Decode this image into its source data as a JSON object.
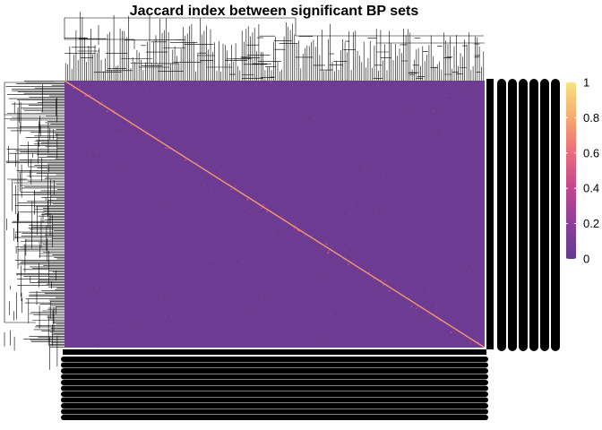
{
  "chart_data": {
    "type": "heatmap",
    "title": "Jaccard index between significant BP sets",
    "xlabel": "",
    "ylabel": "",
    "value_range": [
      0,
      1
    ],
    "background_value": 0.05,
    "diagonal_value": 1,
    "colorbar": {
      "ticks": [
        0,
        0.2,
        0.4,
        0.6,
        0.8,
        1
      ],
      "tick_labels": [
        "0",
        "0.2",
        "0.4",
        "0.6",
        "0.8",
        "1"
      ],
      "colors": [
        "#643A90",
        "#8B3F98",
        "#C2478F",
        "#EB6A7A",
        "#F7A86E",
        "#F5E47E"
      ],
      "placement": "right"
    },
    "dendrograms": [
      "top",
      "left"
    ],
    "row_labels_note": "",
    "column_labels_note": ""
  }
}
